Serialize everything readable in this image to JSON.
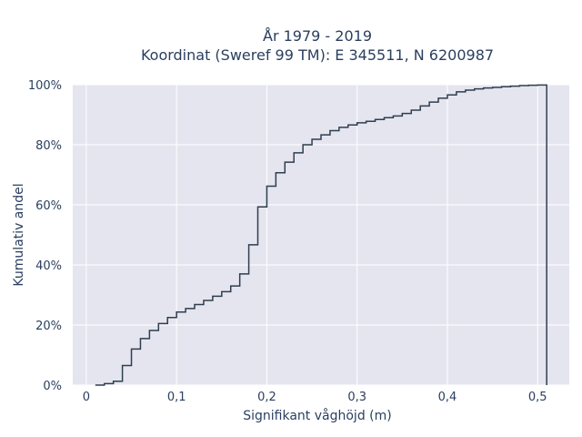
{
  "chart_data": {
    "type": "line",
    "title_lines": [
      "År 1979 - 2019",
      "Koordinat (Sweref 99 TM): E 345511, N 6200987"
    ],
    "xlabel": "Signifikant våghöjd (m)",
    "ylabel": "Kumulativ andel",
    "xlim": [
      -0.015,
      0.535
    ],
    "ylim": [
      0,
      1.0
    ],
    "x_ticks": [
      0,
      0.1,
      0.2,
      0.3,
      0.4,
      0.5
    ],
    "x_tick_labels": [
      "0",
      "0,1",
      "0,2",
      "0,3",
      "0,4",
      "0,5"
    ],
    "y_ticks": [
      0,
      0.2,
      0.4,
      0.6,
      0.8,
      1.0
    ],
    "y_tick_labels": [
      "0%",
      "20%",
      "40%",
      "60%",
      "80%",
      "100%"
    ],
    "grid": true,
    "step": true,
    "line_color": "#2f3e4e",
    "background_color": "#e5e5f0",
    "grid_color": "#ffffff",
    "x": [
      0.01,
      0.02,
      0.03,
      0.04,
      0.05,
      0.06,
      0.07,
      0.08,
      0.09,
      0.1,
      0.11,
      0.12,
      0.13,
      0.14,
      0.15,
      0.16,
      0.17,
      0.18,
      0.19,
      0.2,
      0.21,
      0.22,
      0.23,
      0.24,
      0.25,
      0.26,
      0.27,
      0.28,
      0.29,
      0.3,
      0.31,
      0.32,
      0.33,
      0.34,
      0.35,
      0.36,
      0.37,
      0.38,
      0.39,
      0.4,
      0.41,
      0.42,
      0.43,
      0.44,
      0.45,
      0.46,
      0.47,
      0.48,
      0.49,
      0.5,
      0.51
    ],
    "y": [
      0.0,
      0.005,
      0.013,
      0.065,
      0.12,
      0.155,
      0.182,
      0.205,
      0.225,
      0.243,
      0.255,
      0.268,
      0.282,
      0.296,
      0.311,
      0.33,
      0.37,
      0.467,
      0.593,
      0.662,
      0.707,
      0.742,
      0.773,
      0.8,
      0.818,
      0.833,
      0.847,
      0.858,
      0.866,
      0.873,
      0.878,
      0.884,
      0.89,
      0.896,
      0.904,
      0.915,
      0.929,
      0.942,
      0.955,
      0.966,
      0.976,
      0.982,
      0.986,
      0.989,
      0.991,
      0.993,
      0.995,
      0.997,
      0.998,
      0.999,
      0.0
    ]
  }
}
